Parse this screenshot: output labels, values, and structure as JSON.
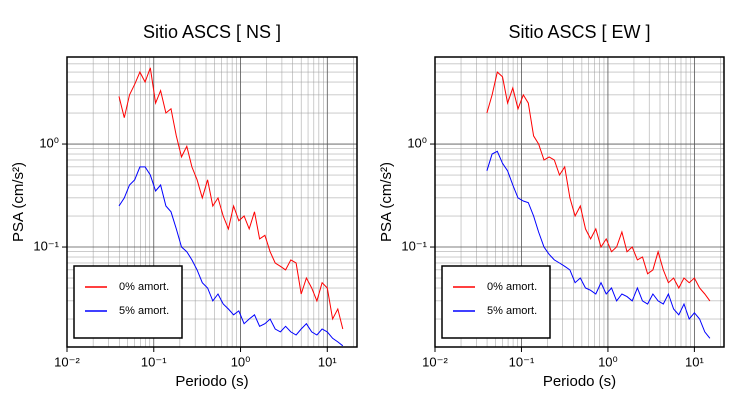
{
  "chart_data": [
    {
      "type": "line",
      "title": "Sitio ASCS [ NS ]",
      "xlabel": "Periodo (s)",
      "ylabel": "PSA (cm/s²)",
      "xscale": "log",
      "yscale": "log",
      "grid": true,
      "legend": "lower left",
      "xlim": [
        0.01,
        22
      ],
      "ylim": [
        0.0107,
        7
      ],
      "xticks": [
        {
          "value": 0.01,
          "label": "10⁻²"
        },
        {
          "value": 0.1,
          "label": "10⁻¹"
        },
        {
          "value": 1,
          "label": "10⁰"
        },
        {
          "value": 10,
          "label": "10¹"
        }
      ],
      "yticks": [
        {
          "value": 0.1,
          "label": "10⁻¹"
        },
        {
          "value": 1,
          "label": "10⁰"
        }
      ],
      "xminorticks": [
        0.02,
        0.03,
        0.04,
        0.05,
        0.06,
        0.07,
        0.08,
        0.09,
        0.2,
        0.3,
        0.4,
        0.5,
        0.6,
        0.7,
        0.8,
        0.9,
        2,
        3,
        4,
        5,
        6,
        7,
        8,
        9,
        20
      ],
      "yminorticks": [
        0.02,
        0.03,
        0.04,
        0.05,
        0.06,
        0.07,
        0.08,
        0.09,
        0.2,
        0.3,
        0.4,
        0.5,
        0.6,
        0.7,
        0.8,
        0.9,
        2,
        3,
        4,
        5,
        6,
        7
      ],
      "x": [
        0.0398,
        0.0457,
        0.0525,
        0.0603,
        0.0692,
        0.0794,
        0.0912,
        0.105,
        0.12,
        0.138,
        0.158,
        0.182,
        0.209,
        0.24,
        0.275,
        0.316,
        0.363,
        0.417,
        0.479,
        0.55,
        0.631,
        0.724,
        0.832,
        0.955,
        1.1,
        1.26,
        1.45,
        1.66,
        1.91,
        2.19,
        2.51,
        2.88,
        3.31,
        3.8,
        4.37,
        5.01,
        5.75,
        6.61,
        7.59,
        8.71,
        10,
        11.5,
        13.2,
        15.1
      ],
      "series": [
        {
          "name": "0% amort.",
          "color": "#ff0000",
          "values": [
            2.9,
            1.8,
            3.0,
            3.8,
            5.0,
            4.0,
            5.5,
            2.5,
            3.3,
            2.0,
            2.2,
            1.2,
            0.75,
            0.95,
            0.6,
            0.45,
            0.3,
            0.45,
            0.25,
            0.3,
            0.2,
            0.15,
            0.25,
            0.18,
            0.2,
            0.15,
            0.22,
            0.12,
            0.13,
            0.09,
            0.07,
            0.065,
            0.06,
            0.075,
            0.07,
            0.035,
            0.05,
            0.04,
            0.03,
            0.045,
            0.04,
            0.02,
            0.025,
            0.016
          ]
        },
        {
          "name": "5% amort.",
          "color": "#0000ff",
          "values": [
            0.25,
            0.3,
            0.4,
            0.45,
            0.6,
            0.6,
            0.5,
            0.35,
            0.4,
            0.25,
            0.22,
            0.15,
            0.1,
            0.09,
            0.075,
            0.06,
            0.045,
            0.04,
            0.03,
            0.035,
            0.028,
            0.025,
            0.022,
            0.024,
            0.018,
            0.02,
            0.022,
            0.017,
            0.018,
            0.02,
            0.016,
            0.015,
            0.017,
            0.015,
            0.014,
            0.016,
            0.018,
            0.015,
            0.014,
            0.016,
            0.015,
            0.013,
            0.012,
            0.011
          ]
        }
      ]
    },
    {
      "type": "line",
      "title": "Sitio ASCS [ EW ]",
      "xlabel": "Periodo (s)",
      "ylabel": "PSA (cm/s²)",
      "xscale": "log",
      "yscale": "log",
      "grid": true,
      "legend": "lower left",
      "xlim": [
        0.01,
        22
      ],
      "ylim": [
        0.0107,
        7
      ],
      "xticks": [
        {
          "value": 0.01,
          "label": "10⁻²"
        },
        {
          "value": 0.1,
          "label": "10⁻¹"
        },
        {
          "value": 1,
          "label": "10⁰"
        },
        {
          "value": 10,
          "label": "10¹"
        }
      ],
      "yticks": [
        {
          "value": 0.1,
          "label": "10⁻¹"
        },
        {
          "value": 1,
          "label": "10⁰"
        }
      ],
      "xminorticks": [
        0.02,
        0.03,
        0.04,
        0.05,
        0.06,
        0.07,
        0.08,
        0.09,
        0.2,
        0.3,
        0.4,
        0.5,
        0.6,
        0.7,
        0.8,
        0.9,
        2,
        3,
        4,
        5,
        6,
        7,
        8,
        9,
        20
      ],
      "yminorticks": [
        0.02,
        0.03,
        0.04,
        0.05,
        0.06,
        0.07,
        0.08,
        0.09,
        0.2,
        0.3,
        0.4,
        0.5,
        0.6,
        0.7,
        0.8,
        0.9,
        2,
        3,
        4,
        5,
        6,
        7
      ],
      "x": [
        0.0398,
        0.0457,
        0.0525,
        0.0603,
        0.0692,
        0.0794,
        0.0912,
        0.105,
        0.12,
        0.138,
        0.158,
        0.182,
        0.209,
        0.24,
        0.275,
        0.316,
        0.363,
        0.417,
        0.479,
        0.55,
        0.631,
        0.724,
        0.832,
        0.955,
        1.1,
        1.26,
        1.45,
        1.66,
        1.91,
        2.19,
        2.51,
        2.88,
        3.31,
        3.8,
        4.37,
        5.01,
        5.75,
        6.61,
        7.59,
        8.71,
        10,
        11.5,
        13.2,
        15.1
      ],
      "series": [
        {
          "name": "0% amort.",
          "color": "#ff0000",
          "values": [
            2.0,
            3.0,
            5.0,
            4.5,
            2.5,
            3.5,
            2.2,
            3.0,
            2.5,
            1.2,
            1.0,
            0.7,
            0.75,
            0.7,
            0.5,
            0.6,
            0.3,
            0.2,
            0.25,
            0.15,
            0.12,
            0.15,
            0.1,
            0.12,
            0.09,
            0.1,
            0.14,
            0.09,
            0.1,
            0.075,
            0.08,
            0.055,
            0.06,
            0.09,
            0.06,
            0.045,
            0.05,
            0.04,
            0.05,
            0.045,
            0.05,
            0.04,
            0.035,
            0.03
          ]
        },
        {
          "name": "5% amort.",
          "color": "#0000ff",
          "values": [
            0.55,
            0.8,
            0.85,
            0.65,
            0.55,
            0.4,
            0.3,
            0.28,
            0.27,
            0.2,
            0.14,
            0.1,
            0.085,
            0.075,
            0.07,
            0.065,
            0.06,
            0.045,
            0.05,
            0.04,
            0.038,
            0.035,
            0.045,
            0.035,
            0.04,
            0.03,
            0.035,
            0.033,
            0.03,
            0.04,
            0.03,
            0.028,
            0.035,
            0.03,
            0.028,
            0.035,
            0.025,
            0.022,
            0.028,
            0.02,
            0.023,
            0.02,
            0.015,
            0.013
          ]
        }
      ]
    }
  ]
}
